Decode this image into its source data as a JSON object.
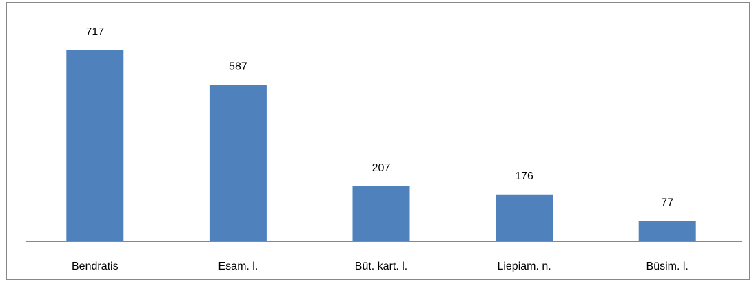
{
  "chart_data": {
    "type": "bar",
    "categories": [
      "Bendratis",
      "Esam. l.",
      "Būt. kart. l.",
      "Liepiam. n.",
      "Būsim. l."
    ],
    "values": [
      717,
      587,
      207,
      176,
      77
    ],
    "color": "#4f81bd"
  }
}
